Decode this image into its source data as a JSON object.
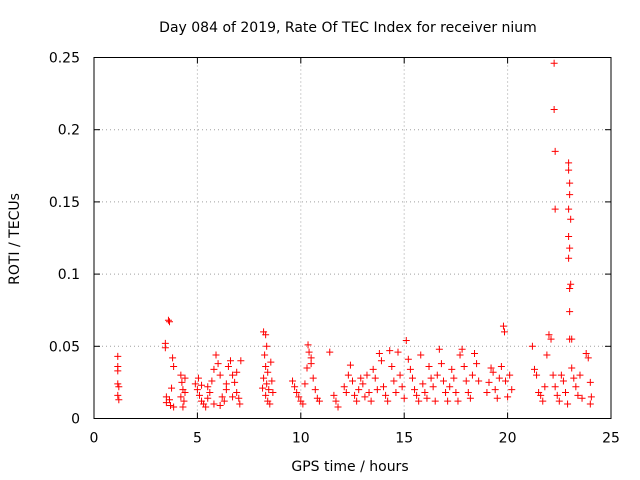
{
  "chart_data": {
    "type": "scatter",
    "title": "Day 084 of 2019, Rate Of TEC Index for receiver nium",
    "xlabel": "GPS time / hours",
    "ylabel": "ROTI / TECUs",
    "xlim": [
      0,
      25
    ],
    "ylim": [
      0,
      0.25
    ],
    "xticks": [
      0,
      5,
      10,
      15,
      20,
      25
    ],
    "xtick_labels": [
      "0",
      "5",
      "10",
      "15",
      "20",
      "25"
    ],
    "yticks": [
      0,
      0.05,
      0.1,
      0.15,
      0.2,
      0.25
    ],
    "ytick_labels": [
      "0",
      "0.05",
      "0.1",
      "0.15",
      "0.2",
      "0.25"
    ],
    "grid": true,
    "marker": "+",
    "series": [
      {
        "name": "ROTI",
        "color": "#ff0000",
        "points": [
          [
            1.15,
            0.043
          ],
          [
            1.15,
            0.036
          ],
          [
            1.15,
            0.033
          ],
          [
            1.15,
            0.024
          ],
          [
            1.2,
            0.022
          ],
          [
            1.15,
            0.016
          ],
          [
            1.2,
            0.013
          ],
          [
            3.45,
            0.052
          ],
          [
            3.45,
            0.049
          ],
          [
            3.6,
            0.068
          ],
          [
            3.65,
            0.067
          ],
          [
            3.5,
            0.015
          ],
          [
            3.5,
            0.011
          ],
          [
            3.65,
            0.013
          ],
          [
            3.7,
            0.009
          ],
          [
            3.8,
            0.042
          ],
          [
            3.85,
            0.036
          ],
          [
            3.75,
            0.021
          ],
          [
            3.85,
            0.008
          ],
          [
            4.2,
            0.03
          ],
          [
            4.25,
            0.025
          ],
          [
            4.3,
            0.02
          ],
          [
            4.2,
            0.015
          ],
          [
            4.35,
            0.012
          ],
          [
            4.3,
            0.008
          ],
          [
            4.4,
            0.028
          ],
          [
            4.4,
            0.018
          ],
          [
            4.9,
            0.024
          ],
          [
            5.0,
            0.02
          ],
          [
            5.1,
            0.016
          ],
          [
            5.2,
            0.012
          ],
          [
            5.3,
            0.01
          ],
          [
            5.4,
            0.008
          ],
          [
            5.5,
            0.022
          ],
          [
            5.6,
            0.018
          ],
          [
            5.7,
            0.026
          ],
          [
            5.8,
            0.034
          ],
          [
            5.9,
            0.044
          ],
          [
            6.0,
            0.038
          ],
          [
            6.1,
            0.03
          ],
          [
            6.2,
            0.015
          ],
          [
            6.3,
            0.012
          ],
          [
            6.4,
            0.02
          ],
          [
            6.5,
            0.036
          ],
          [
            6.6,
            0.04
          ],
          [
            6.7,
            0.03
          ],
          [
            6.8,
            0.025
          ],
          [
            6.9,
            0.018
          ],
          [
            7.0,
            0.014
          ],
          [
            7.05,
            0.01
          ],
          [
            7.1,
            0.04
          ],
          [
            5.2,
            0.023
          ],
          [
            5.5,
            0.014
          ],
          [
            5.8,
            0.01
          ],
          [
            6.1,
            0.009
          ],
          [
            6.4,
            0.024
          ],
          [
            6.7,
            0.015
          ],
          [
            6.9,
            0.032
          ],
          [
            5.05,
            0.028
          ],
          [
            8.2,
            0.06
          ],
          [
            8.3,
            0.058
          ],
          [
            8.35,
            0.05
          ],
          [
            8.25,
            0.044
          ],
          [
            8.3,
            0.036
          ],
          [
            8.4,
            0.032
          ],
          [
            8.2,
            0.028
          ],
          [
            8.35,
            0.024
          ],
          [
            8.45,
            0.02
          ],
          [
            8.3,
            0.016
          ],
          [
            8.4,
            0.012
          ],
          [
            8.5,
            0.01
          ],
          [
            8.55,
            0.039
          ],
          [
            8.6,
            0.026
          ],
          [
            8.65,
            0.018
          ],
          [
            8.15,
            0.021
          ],
          [
            9.6,
            0.026
          ],
          [
            9.7,
            0.022
          ],
          [
            9.8,
            0.018
          ],
          [
            9.9,
            0.015
          ],
          [
            10.0,
            0.012
          ],
          [
            10.1,
            0.01
          ],
          [
            10.2,
            0.024
          ],
          [
            10.3,
            0.035
          ],
          [
            10.4,
            0.046
          ],
          [
            10.5,
            0.042
          ],
          [
            10.5,
            0.038
          ],
          [
            10.6,
            0.028
          ],
          [
            10.7,
            0.02
          ],
          [
            10.8,
            0.014
          ],
          [
            10.9,
            0.012
          ],
          [
            10.35,
            0.051
          ],
          [
            11.4,
            0.046
          ],
          [
            11.6,
            0.016
          ],
          [
            11.7,
            0.012
          ],
          [
            11.8,
            0.008
          ],
          [
            12.1,
            0.022
          ],
          [
            12.2,
            0.018
          ],
          [
            12.3,
            0.03
          ],
          [
            12.4,
            0.037
          ],
          [
            12.5,
            0.026
          ],
          [
            12.6,
            0.016
          ],
          [
            12.7,
            0.012
          ],
          [
            12.8,
            0.02
          ],
          [
            12.9,
            0.028
          ],
          [
            13.0,
            0.024
          ],
          [
            13.1,
            0.015
          ],
          [
            13.2,
            0.03
          ],
          [
            13.3,
            0.018
          ],
          [
            13.4,
            0.012
          ],
          [
            13.5,
            0.034
          ],
          [
            13.6,
            0.028
          ],
          [
            13.7,
            0.02
          ],
          [
            13.8,
            0.045
          ],
          [
            13.9,
            0.04
          ],
          [
            14.0,
            0.022
          ],
          [
            14.1,
            0.016
          ],
          [
            14.2,
            0.012
          ],
          [
            14.3,
            0.047
          ],
          [
            14.4,
            0.036
          ],
          [
            14.5,
            0.026
          ],
          [
            14.6,
            0.018
          ],
          [
            14.7,
            0.046
          ],
          [
            14.8,
            0.03
          ],
          [
            14.9,
            0.022
          ],
          [
            15.0,
            0.014
          ],
          [
            15.1,
            0.054
          ],
          [
            15.2,
            0.041
          ],
          [
            15.3,
            0.034
          ],
          [
            15.4,
            0.028
          ],
          [
            15.5,
            0.02
          ],
          [
            15.6,
            0.016
          ],
          [
            15.7,
            0.012
          ],
          [
            15.8,
            0.044
          ],
          [
            15.9,
            0.024
          ],
          [
            16.0,
            0.018
          ],
          [
            16.1,
            0.014
          ],
          [
            16.2,
            0.036
          ],
          [
            16.3,
            0.028
          ],
          [
            16.4,
            0.022
          ],
          [
            16.5,
            0.012
          ],
          [
            16.6,
            0.03
          ],
          [
            16.7,
            0.048
          ],
          [
            16.8,
            0.038
          ],
          [
            16.9,
            0.026
          ],
          [
            17.0,
            0.018
          ],
          [
            17.1,
            0.012
          ],
          [
            17.2,
            0.022
          ],
          [
            17.3,
            0.034
          ],
          [
            17.4,
            0.028
          ],
          [
            17.5,
            0.018
          ],
          [
            17.6,
            0.012
          ],
          [
            17.7,
            0.044
          ],
          [
            17.8,
            0.048
          ],
          [
            17.9,
            0.036
          ],
          [
            18.0,
            0.026
          ],
          [
            18.1,
            0.018
          ],
          [
            18.2,
            0.014
          ],
          [
            18.3,
            0.03
          ],
          [
            18.4,
            0.045
          ],
          [
            18.5,
            0.038
          ],
          [
            18.6,
            0.026
          ],
          [
            19.0,
            0.018
          ],
          [
            19.1,
            0.025
          ],
          [
            19.2,
            0.035
          ],
          [
            19.3,
            0.032
          ],
          [
            19.4,
            0.02
          ],
          [
            19.5,
            0.014
          ],
          [
            19.6,
            0.028
          ],
          [
            19.7,
            0.036
          ],
          [
            19.8,
            0.064
          ],
          [
            19.85,
            0.06
          ],
          [
            19.9,
            0.026
          ],
          [
            20.0,
            0.015
          ],
          [
            20.1,
            0.03
          ],
          [
            20.2,
            0.02
          ],
          [
            21.2,
            0.05
          ],
          [
            21.3,
            0.034
          ],
          [
            21.4,
            0.03
          ],
          [
            21.5,
            0.018
          ],
          [
            21.6,
            0.016
          ],
          [
            21.7,
            0.012
          ],
          [
            21.8,
            0.022
          ],
          [
            21.9,
            0.044
          ],
          [
            22.0,
            0.058
          ],
          [
            22.1,
            0.055
          ],
          [
            22.2,
            0.03
          ],
          [
            22.3,
            0.022
          ],
          [
            22.4,
            0.016
          ],
          [
            22.5,
            0.012
          ],
          [
            22.6,
            0.03
          ],
          [
            22.7,
            0.026
          ],
          [
            22.8,
            0.018
          ],
          [
            22.9,
            0.01
          ],
          [
            23.0,
            0.055
          ],
          [
            23.1,
            0.035
          ],
          [
            23.2,
            0.028
          ],
          [
            23.3,
            0.022
          ],
          [
            23.4,
            0.016
          ],
          [
            23.5,
            0.03
          ],
          [
            23.6,
            0.014
          ],
          [
            23.8,
            0.045
          ],
          [
            23.9,
            0.042
          ],
          [
            24.0,
            0.025
          ],
          [
            24.05,
            0.015
          ],
          [
            24.0,
            0.01
          ],
          [
            22.25,
            0.246
          ],
          [
            22.25,
            0.214
          ],
          [
            22.3,
            0.185
          ],
          [
            22.3,
            0.145
          ],
          [
            22.95,
            0.177
          ],
          [
            22.95,
            0.172
          ],
          [
            23.0,
            0.163
          ],
          [
            23.0,
            0.155
          ],
          [
            22.95,
            0.145
          ],
          [
            23.05,
            0.138
          ],
          [
            22.95,
            0.126
          ],
          [
            23.0,
            0.118
          ],
          [
            22.95,
            0.111
          ],
          [
            23.05,
            0.093
          ],
          [
            23.0,
            0.09
          ],
          [
            23.0,
            0.074
          ],
          [
            23.1,
            0.055
          ]
        ]
      }
    ]
  }
}
